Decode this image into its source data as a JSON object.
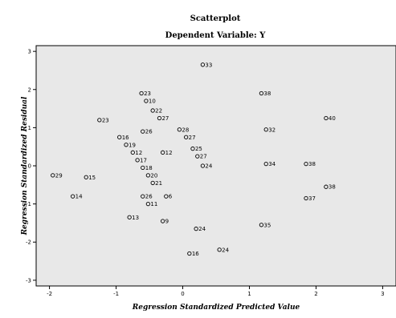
{
  "chart_data": {
    "type": "scatter",
    "title": "Scatterplot",
    "subtitle": "Dependent Variable: Y",
    "xlabel": "Regression Standardized Predicted Value",
    "ylabel": "Regression Standardized Residual",
    "xlim": [
      -2.2,
      3.2
    ],
    "ylim": [
      -3.15,
      3.15
    ],
    "xticks": [
      "-2",
      "-1",
      "0",
      "1",
      "2",
      "3"
    ],
    "yticks": [
      "3",
      "2",
      "1",
      "0",
      "-1",
      "-2",
      "-3"
    ],
    "grid": false,
    "background": "#e8e8e8",
    "points": [
      {
        "x": -1.95,
        "y": -0.25,
        "label": "29"
      },
      {
        "x": -1.65,
        "y": -0.8,
        "label": "14"
      },
      {
        "x": -1.45,
        "y": -0.3,
        "label": "15"
      },
      {
        "x": -1.25,
        "y": 1.2,
        "label": "23"
      },
      {
        "x": -0.95,
        "y": 0.75,
        "label": "16"
      },
      {
        "x": -0.85,
        "y": 0.55,
        "label": "19"
      },
      {
        "x": -0.75,
        "y": 0.35,
        "label": "12"
      },
      {
        "x": -0.68,
        "y": 0.15,
        "label": "17"
      },
      {
        "x": -0.6,
        "y": -0.05,
        "label": "18"
      },
      {
        "x": -0.52,
        "y": -0.25,
        "label": "20"
      },
      {
        "x": -0.45,
        "y": -0.45,
        "label": "21"
      },
      {
        "x": -0.62,
        "y": 1.9,
        "label": "23"
      },
      {
        "x": -0.55,
        "y": 1.7,
        "label": "10"
      },
      {
        "x": -0.45,
        "y": 1.45,
        "label": "22"
      },
      {
        "x": -0.35,
        "y": 1.25,
        "label": "27"
      },
      {
        "x": -0.6,
        "y": 0.9,
        "label": "26"
      },
      {
        "x": -0.6,
        "y": -0.8,
        "label": "26"
      },
      {
        "x": -0.52,
        "y": -1.0,
        "label": "11"
      },
      {
        "x": -0.25,
        "y": -0.8,
        "label": "6"
      },
      {
        "x": -0.8,
        "y": -1.35,
        "label": "13"
      },
      {
        "x": -0.3,
        "y": 0.35,
        "label": "12"
      },
      {
        "x": -0.3,
        "y": -1.45,
        "label": "9"
      },
      {
        "x": -0.05,
        "y": 0.95,
        "label": "28"
      },
      {
        "x": 0.05,
        "y": 0.75,
        "label": "27"
      },
      {
        "x": 0.15,
        "y": 0.45,
        "label": "25"
      },
      {
        "x": 0.22,
        "y": 0.25,
        "label": "27"
      },
      {
        "x": 0.3,
        "y": 0.0,
        "label": "24"
      },
      {
        "x": 0.3,
        "y": 2.65,
        "label": "33"
      },
      {
        "x": 0.2,
        "y": -1.65,
        "label": "24"
      },
      {
        "x": 0.1,
        "y": -2.3,
        "label": "16"
      },
      {
        "x": 0.55,
        "y": -2.2,
        "label": "24"
      },
      {
        "x": 1.18,
        "y": 1.9,
        "label": "38"
      },
      {
        "x": 1.25,
        "y": 0.95,
        "label": "32"
      },
      {
        "x": 1.25,
        "y": 0.05,
        "label": "34"
      },
      {
        "x": 1.18,
        "y": -1.55,
        "label": "35"
      },
      {
        "x": 1.85,
        "y": 0.05,
        "label": "38"
      },
      {
        "x": 1.85,
        "y": -0.85,
        "label": "37"
      },
      {
        "x": 2.15,
        "y": 1.25,
        "label": "40"
      },
      {
        "x": 2.15,
        "y": -0.55,
        "label": "38"
      }
    ]
  }
}
